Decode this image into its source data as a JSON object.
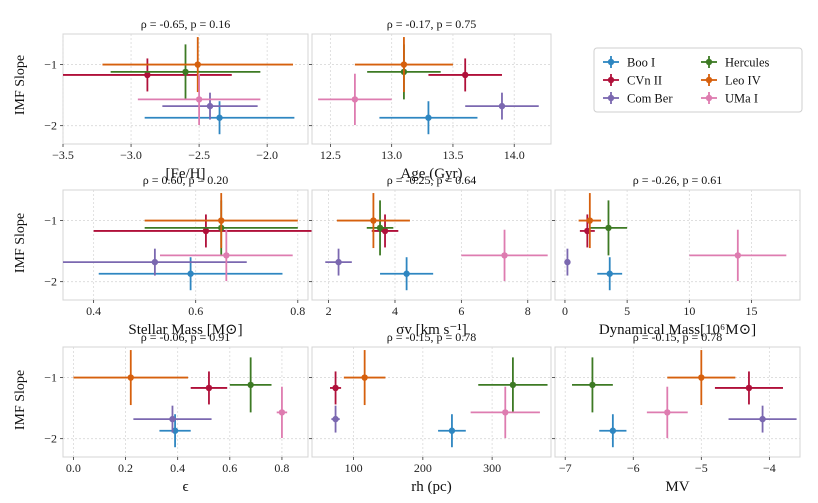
{
  "figure": {
    "ylabel": "IMF Slope",
    "legend": {
      "placement": "top-right",
      "entries": [
        {
          "name": "Boo I",
          "color": "#2e86c1"
        },
        {
          "name": "CVn II",
          "color": "#b0103a"
        },
        {
          "name": "Com Ber",
          "color": "#7b68b0"
        },
        {
          "name": "Hercules",
          "color": "#3d7a24"
        },
        {
          "name": "Leo IV",
          "color": "#d6600d"
        },
        {
          "name": "UMa I",
          "color": "#de7cb0"
        }
      ]
    }
  },
  "chart_data": [
    {
      "type": "scatter",
      "title": "ρ = -0.65, p = 0.16",
      "xlabel": "[Fe/H]",
      "ylabel": "IMF Slope",
      "xlim": [
        -3.5,
        -1.7
      ],
      "ylim": [
        -2.3,
        -0.5
      ],
      "xticks": [
        -3.5,
        -3.0,
        -2.5,
        -2.0
      ],
      "xticklabels": [
        "−3.5",
        "−3.0",
        "−2.5",
        "−2.0"
      ],
      "yticks": [
        -1,
        -2
      ],
      "yticklabels": [
        "−1",
        "−2"
      ],
      "grid": true,
      "points": [
        {
          "name": "Boo I",
          "x": -2.35,
          "xerr": 0.55,
          "y": -1.87,
          "yerr": 0.27
        },
        {
          "name": "CVn II",
          "x": -2.88,
          "xerr": 0.62,
          "y": -1.17,
          "yerr": 0.27
        },
        {
          "name": "Com Ber",
          "x": -2.42,
          "xerr": 0.35,
          "y": -1.68,
          "yerr": 0.22
        },
        {
          "name": "Hercules",
          "x": -2.6,
          "xerr": 0.55,
          "y": -1.12,
          "yerr": 0.45
        },
        {
          "name": "Leo IV",
          "x": -2.51,
          "xerr": 0.7,
          "y": -1.0,
          "yerr": 0.45
        },
        {
          "name": "UMa I",
          "x": -2.5,
          "xerr": 0.45,
          "y": -1.57,
          "yerr": 0.42
        }
      ]
    },
    {
      "type": "scatter",
      "title": "ρ = -0.17, p = 0.75",
      "xlabel": "Age (Gyr)",
      "ylabel": "",
      "xlim": [
        12.35,
        14.3
      ],
      "ylim": [
        -2.3,
        -0.5
      ],
      "xticks": [
        12.5,
        13.0,
        13.5,
        14.0
      ],
      "xticklabels": [
        "12.5",
        "13.0",
        "13.5",
        "14.0"
      ],
      "yticks": [
        -1,
        -2
      ],
      "yticklabels": [],
      "grid": true,
      "points": [
        {
          "name": "Boo I",
          "x": 13.3,
          "xerr": 0.4,
          "y": -1.87,
          "yerr": 0.27
        },
        {
          "name": "CVn II",
          "x": 13.6,
          "xerr": 0.3,
          "y": -1.17,
          "yerr": 0.27
        },
        {
          "name": "Com Ber",
          "x": 13.9,
          "xerr": 0.3,
          "y": -1.68,
          "yerr": 0.22
        },
        {
          "name": "Hercules",
          "x": 13.1,
          "xerr": 0.3,
          "y": -1.12,
          "yerr": 0.45
        },
        {
          "name": "Leo IV",
          "x": 13.1,
          "xerr": 0.4,
          "y": -1.0,
          "yerr": 0.45
        },
        {
          "name": "UMa I",
          "x": 12.7,
          "xerr": 0.3,
          "y": -1.57,
          "yerr": 0.42
        }
      ]
    },
    {
      "type": "scatter",
      "title": "ρ = 0.60, p = 0.20",
      "xlabel": "Stellar Mass [M⊙]",
      "ylabel": "IMF Slope",
      "xlim": [
        0.34,
        0.82
      ],
      "ylim": [
        -2.3,
        -0.5
      ],
      "xticks": [
        0.4,
        0.6,
        0.8
      ],
      "xticklabels": [
        "0.4",
        "0.6",
        "0.8"
      ],
      "yticks": [
        -1,
        -2
      ],
      "yticklabels": [
        "−1",
        "−2"
      ],
      "grid": true,
      "points": [
        {
          "name": "Boo I",
          "x": 0.59,
          "xerr": 0.18,
          "y": -1.87,
          "yerr": 0.27
        },
        {
          "name": "CVn II",
          "x": 0.62,
          "xerr": 0.22,
          "y": -1.17,
          "yerr": 0.27
        },
        {
          "name": "Com Ber",
          "x": 0.52,
          "xerr": 0.18,
          "y": -1.68,
          "yerr": 0.22
        },
        {
          "name": "Hercules",
          "x": 0.65,
          "xerr": 0.15,
          "y": -1.12,
          "yerr": 0.45
        },
        {
          "name": "Leo IV",
          "x": 0.65,
          "xerr": 0.15,
          "y": -1.0,
          "yerr": 0.45
        },
        {
          "name": "UMa I",
          "x": 0.66,
          "xerr": 0.13,
          "y": -1.57,
          "yerr": 0.42
        }
      ]
    },
    {
      "type": "scatter",
      "title": "ρ = -0.25, p = 0.64",
      "xlabel": "σv [km s⁻¹]",
      "ylabel": "",
      "xlim": [
        1.5,
        8.7
      ],
      "ylim": [
        -2.3,
        -0.5
      ],
      "xticks": [
        2,
        4,
        6,
        8
      ],
      "xticklabels": [
        "2",
        "4",
        "6",
        "8"
      ],
      "yticks": [
        -1,
        -2
      ],
      "yticklabels": [],
      "grid": true,
      "points": [
        {
          "name": "Boo I",
          "x": 4.35,
          "xerr": 0.8,
          "y": -1.87,
          "yerr": 0.27
        },
        {
          "name": "CVn II",
          "x": 3.7,
          "xerr": 0.4,
          "y": -1.17,
          "yerr": 0.27
        },
        {
          "name": "Com Ber",
          "x": 2.3,
          "xerr": 0.4,
          "y": -1.68,
          "yerr": 0.22
        },
        {
          "name": "Hercules",
          "x": 3.55,
          "xerr": 0.4,
          "y": -1.12,
          "yerr": 0.45
        },
        {
          "name": "Leo IV",
          "x": 3.35,
          "xerr": 1.1,
          "y": -1.0,
          "yerr": 0.45
        },
        {
          "name": "UMa I",
          "x": 7.3,
          "xerr": 1.3,
          "y": -1.57,
          "yerr": 0.42
        }
      ]
    },
    {
      "type": "scatter",
      "title": "ρ = -0.26, p = 0.61",
      "xlabel": "Dynamical Mass[10⁶M⊙]",
      "ylabel": "",
      "xlim": [
        -0.8,
        18.9
      ],
      "ylim": [
        -2.3,
        -0.5
      ],
      "xticks": [
        0,
        5,
        10,
        15
      ],
      "xticklabels": [
        "0",
        "5",
        "10",
        "15"
      ],
      "yticks": [
        -1,
        -2
      ],
      "yticklabels": [],
      "grid": true,
      "points": [
        {
          "name": "Boo I",
          "x": 3.6,
          "xerr": 1.0,
          "y": -1.87,
          "yerr": 0.27
        },
        {
          "name": "CVn II",
          "x": 1.8,
          "xerr": 0.6,
          "y": -1.17,
          "yerr": 0.27
        },
        {
          "name": "Com Ber",
          "x": 0.2,
          "xerr": 0.15,
          "y": -1.68,
          "yerr": 0.22
        },
        {
          "name": "Hercules",
          "x": 3.5,
          "xerr": 1.5,
          "y": -1.12,
          "yerr": 0.45
        },
        {
          "name": "Leo IV",
          "x": 2.0,
          "xerr": 0.9,
          "y": -1.0,
          "yerr": 0.45
        },
        {
          "name": "UMa I",
          "x": 13.9,
          "xerr": 3.9,
          "y": -1.57,
          "yerr": 0.42
        }
      ]
    },
    {
      "type": "scatter",
      "title": "ρ = -0.06, p = 0.91",
      "xlabel": "ϵ",
      "ylabel": "IMF Slope",
      "xlim": [
        -0.04,
        0.9
      ],
      "ylim": [
        -2.3,
        -0.5
      ],
      "xticks": [
        0.0,
        0.2,
        0.4,
        0.6,
        0.8
      ],
      "xticklabels": [
        "0.0",
        "0.2",
        "0.4",
        "0.6",
        "0.8"
      ],
      "yticks": [
        -1,
        -2
      ],
      "yticklabels": [
        "−1",
        "−2"
      ],
      "grid": true,
      "points": [
        {
          "name": "Boo I",
          "x": 0.39,
          "xerr": 0.06,
          "y": -1.87,
          "yerr": 0.27
        },
        {
          "name": "CVn II",
          "x": 0.52,
          "xerr": 0.07,
          "y": -1.17,
          "yerr": 0.27
        },
        {
          "name": "Com Ber",
          "x": 0.38,
          "xerr": 0.15,
          "y": -1.68,
          "yerr": 0.22
        },
        {
          "name": "Hercules",
          "x": 0.68,
          "xerr": 0.08,
          "y": -1.12,
          "yerr": 0.45
        },
        {
          "name": "Leo IV",
          "x": 0.22,
          "xerr": 0.22,
          "y": -1.0,
          "yerr": 0.45
        },
        {
          "name": "UMa I",
          "x": 0.8,
          "xerr": 0.02,
          "y": -1.57,
          "yerr": 0.42
        }
      ]
    },
    {
      "type": "scatter",
      "title": "ρ = -0.15, p = 0.78",
      "xlabel": "rh (pc)",
      "ylabel": "",
      "xlim": [
        40,
        385
      ],
      "ylim": [
        -2.3,
        -0.5
      ],
      "xticks": [
        100,
        200,
        300
      ],
      "xticklabels": [
        "100",
        "200",
        "300"
      ],
      "yticks": [
        -1,
        -2
      ],
      "yticklabels": [],
      "grid": true,
      "points": [
        {
          "name": "Boo I",
          "x": 242,
          "xerr": 20,
          "y": -1.87,
          "yerr": 0.27
        },
        {
          "name": "CVn II",
          "x": 74,
          "xerr": 8,
          "y": -1.17,
          "yerr": 0.27
        },
        {
          "name": "Com Ber",
          "x": 74,
          "xerr": 6,
          "y": -1.68,
          "yerr": 0.22
        },
        {
          "name": "Hercules",
          "x": 330,
          "xerr": 50,
          "y": -1.12,
          "yerr": 0.45
        },
        {
          "name": "Leo IV",
          "x": 116,
          "xerr": 30,
          "y": -1.0,
          "yerr": 0.45
        },
        {
          "name": "UMa I",
          "x": 319,
          "xerr": 50,
          "y": -1.57,
          "yerr": 0.42
        }
      ]
    },
    {
      "type": "scatter",
      "title": "ρ = -0.15, p = 0.78",
      "xlabel": "MV",
      "ylabel": "",
      "xlim": [
        -7.15,
        -3.55
      ],
      "ylim": [
        -2.3,
        -0.5
      ],
      "xticks": [
        -7,
        -6,
        -5,
        -4
      ],
      "xticklabels": [
        "−7",
        "−6",
        "−5",
        "−4"
      ],
      "yticks": [
        -1,
        -2
      ],
      "yticklabels": [],
      "grid": true,
      "points": [
        {
          "name": "Boo I",
          "x": -6.3,
          "xerr": 0.2,
          "y": -1.87,
          "yerr": 0.27
        },
        {
          "name": "CVn II",
          "x": -4.3,
          "xerr": 0.5,
          "y": -1.17,
          "yerr": 0.27
        },
        {
          "name": "Com Ber",
          "x": -4.1,
          "xerr": 0.5,
          "y": -1.68,
          "yerr": 0.22
        },
        {
          "name": "Hercules",
          "x": -6.6,
          "xerr": 0.3,
          "y": -1.12,
          "yerr": 0.45
        },
        {
          "name": "Leo IV",
          "x": -5.0,
          "xerr": 0.5,
          "y": -1.0,
          "yerr": 0.45
        },
        {
          "name": "UMa I",
          "x": -5.5,
          "xerr": 0.3,
          "y": -1.57,
          "yerr": 0.42
        }
      ]
    }
  ]
}
